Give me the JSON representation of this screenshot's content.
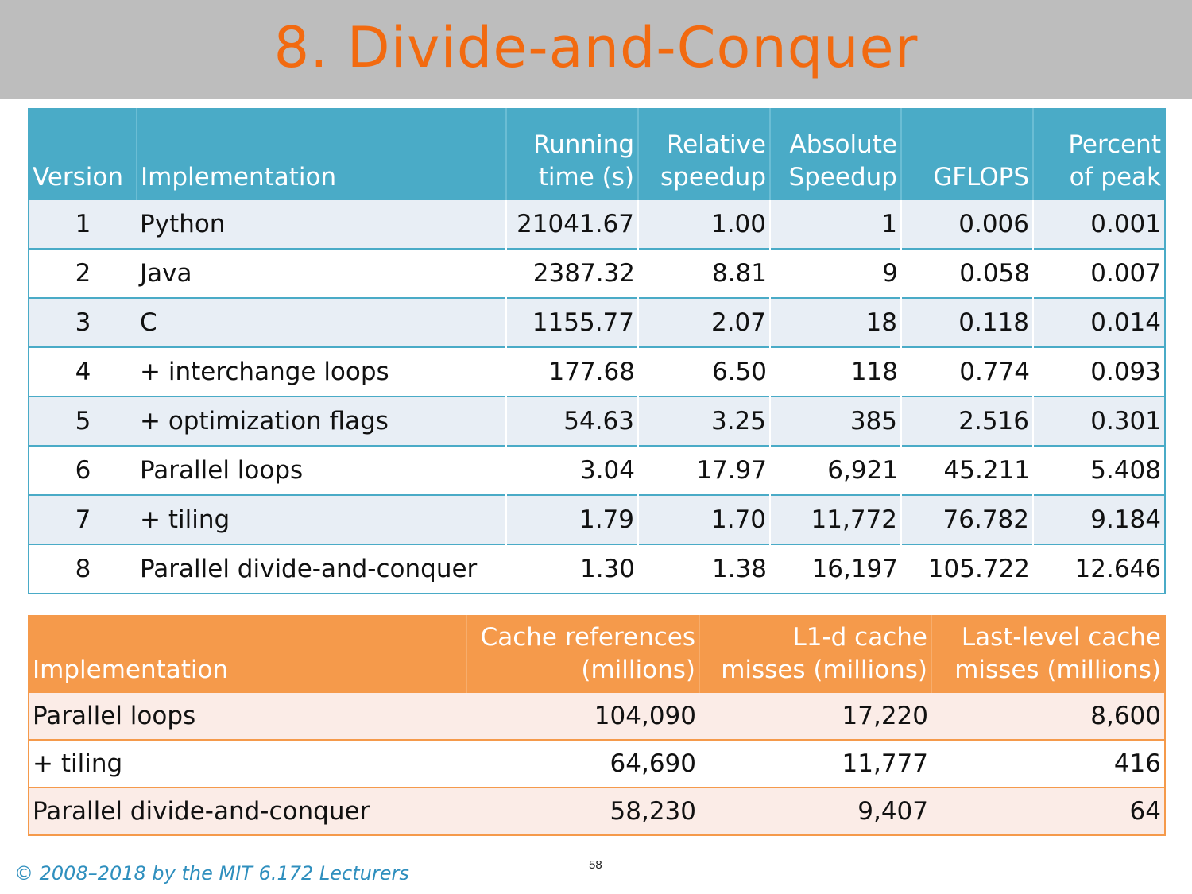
{
  "title": "8. Divide-and-Conquer",
  "perf_table": {
    "headers": {
      "version": "Version",
      "implementation": "Implementation",
      "running_time": [
        "Running",
        "time (s)"
      ],
      "relative_speedup": [
        "Relative",
        "speedup"
      ],
      "absolute_speedup": [
        "Absolute",
        "Speedup"
      ],
      "gflops": "GFLOPS",
      "percent_peak": [
        "Percent",
        "of peak"
      ]
    },
    "rows": [
      {
        "version": "1",
        "implementation": "Python",
        "running_time": "21041.67",
        "relative_speedup": "1.00",
        "absolute_speedup": "1",
        "gflops": "0.006",
        "percent_peak": "0.001"
      },
      {
        "version": "2",
        "implementation": "Java",
        "running_time": "2387.32",
        "relative_speedup": "8.81",
        "absolute_speedup": "9",
        "gflops": "0.058",
        "percent_peak": "0.007"
      },
      {
        "version": "3",
        "implementation": "C",
        "running_time": "1155.77",
        "relative_speedup": "2.07",
        "absolute_speedup": "18",
        "gflops": "0.118",
        "percent_peak": "0.014"
      },
      {
        "version": "4",
        "implementation": "+ interchange loops",
        "running_time": "177.68",
        "relative_speedup": "6.50",
        "absolute_speedup": "118",
        "gflops": "0.774",
        "percent_peak": "0.093"
      },
      {
        "version": "5",
        "implementation": "+ optimization flags",
        "running_time": "54.63",
        "relative_speedup": "3.25",
        "absolute_speedup": "385",
        "gflops": "2.516",
        "percent_peak": "0.301"
      },
      {
        "version": "6",
        "implementation": "Parallel loops",
        "running_time": "3.04",
        "relative_speedup": "17.97",
        "absolute_speedup": "6,921",
        "gflops": "45.211",
        "percent_peak": "5.408"
      },
      {
        "version": "7",
        "implementation": "+ tiling",
        "running_time": "1.79",
        "relative_speedup": "1.70",
        "absolute_speedup": "11,772",
        "gflops": "76.782",
        "percent_peak": "9.184"
      },
      {
        "version": "8",
        "implementation": "Parallel divide-and-conquer",
        "running_time": "1.30",
        "relative_speedup": "1.38",
        "absolute_speedup": "16,197",
        "gflops": "105.722",
        "percent_peak": "12.646"
      }
    ]
  },
  "cache_table": {
    "headers": {
      "implementation": "Implementation",
      "cache_refs": [
        "Cache references",
        "(millions)"
      ],
      "l1d_misses": [
        "L1-d cache",
        "misses (millions)"
      ],
      "llc_misses": [
        "Last-level cache",
        "misses (millions)"
      ]
    },
    "rows": [
      {
        "implementation": "Parallel loops",
        "cache_refs": "104,090",
        "l1d_misses": "17,220",
        "llc_misses": "8,600"
      },
      {
        "implementation": "+ tiling",
        "cache_refs": "64,690",
        "l1d_misses": "11,777",
        "llc_misses": "416"
      },
      {
        "implementation": "Parallel divide-and-conquer",
        "cache_refs": "58,230",
        "l1d_misses": "9,407",
        "llc_misses": "64"
      }
    ]
  },
  "footer": {
    "copyright": "© 2008–2018 by the MIT 6.172 Lecturers",
    "page_number": "58"
  },
  "colors": {
    "title": "#f26a10",
    "title_bar": "#bdbdbd",
    "perf_header": "#4aabc7",
    "perf_band": "#e8eef5",
    "cache_header": "#f59a4b",
    "cache_band": "#fbece7",
    "footer_text": "#2f8fbe"
  }
}
